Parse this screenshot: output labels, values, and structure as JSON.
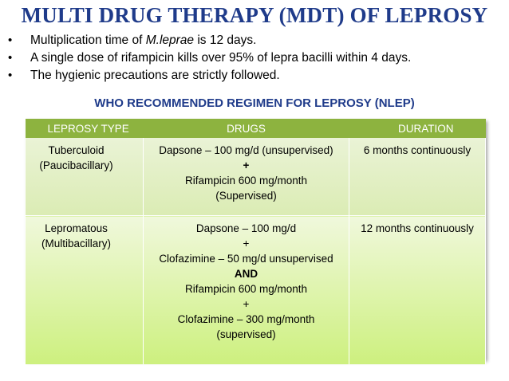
{
  "title": "MULTI DRUG THERAPY (MDT) OF LEPROSY",
  "bullets": [
    {
      "pre": "Multiplication time of ",
      "italic": "M.leprae",
      "post": "  is 12 days."
    },
    {
      "pre": "A single dose of rifampicin kills over 95% of lepra bacilli within 4 days.",
      "italic": "",
      "post": ""
    },
    {
      "pre": "The hygienic precautions are strictly followed.",
      "italic": "",
      "post": ""
    }
  ],
  "bullet_char": "•",
  "subtitle": "WHO RECOMMENDED REGIMEN FOR LEPROSY (NLEP)",
  "table": {
    "headers": [
      "LEPROSY TYPE",
      "DRUGS",
      "DURATION"
    ],
    "rows": [
      {
        "type": [
          "Tuberculoid",
          "(Paucibacillary)"
        ],
        "drugs": [
          {
            "text": "Dapsone – 100 mg/d (unsupervised)",
            "bold": false
          },
          {
            "text": "+",
            "bold": true
          },
          {
            "text": "Rifampicin 600 mg/month",
            "bold": false
          },
          {
            "text": "(Supervised)",
            "bold": false
          }
        ],
        "duration": "6 months continuously"
      },
      {
        "type": [
          "Lepromatous",
          "(Multibacillary)"
        ],
        "drugs": [
          {
            "text": "Dapsone – 100 mg/d",
            "bold": false
          },
          {
            "text": "+",
            "bold": false
          },
          {
            "text": "Clofazimine – 50 mg/d unsupervised",
            "bold": false
          },
          {
            "text": "AND",
            "bold": true
          },
          {
            "text": "Rifampicin 600 mg/month",
            "bold": false
          },
          {
            "text": "+",
            "bold": false
          },
          {
            "text": "Clofazimine – 300 mg/month",
            "bold": false
          },
          {
            "text": "(supervised)",
            "bold": false
          }
        ],
        "duration": "12 months continuously"
      }
    ]
  },
  "colors": {
    "title": "#1f3b8a",
    "header_bg": "#8db33f",
    "row1_bg": "#dbecb4",
    "row2_bg": "#cdf07e"
  }
}
